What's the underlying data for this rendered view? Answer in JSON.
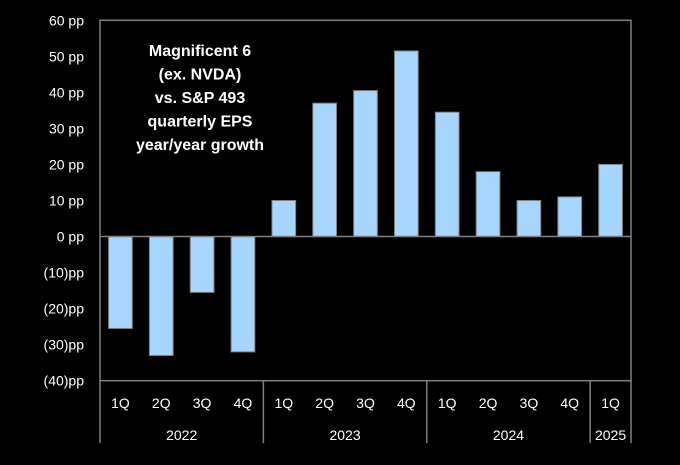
{
  "chart_data": {
    "type": "bar",
    "title_lines": [
      "Magnificent 6",
      "(ex. NVDA)",
      "vs. S&P 493",
      "quarterly EPS",
      "year/year growth"
    ],
    "xlabel": "",
    "ylabel": "",
    "ylim": [
      -40,
      60
    ],
    "yticks": [
      {
        "value": 60,
        "label": "60 pp"
      },
      {
        "value": 50,
        "label": "50 pp"
      },
      {
        "value": 40,
        "label": "40 pp"
      },
      {
        "value": 30,
        "label": "30 pp"
      },
      {
        "value": 20,
        "label": "20 pp"
      },
      {
        "value": 10,
        "label": "10 pp"
      },
      {
        "value": 0,
        "label": "0 pp"
      },
      {
        "value": -10,
        "label": "(10)pp"
      },
      {
        "value": -20,
        "label": "(20)pp"
      },
      {
        "value": -30,
        "label": "(30)pp"
      },
      {
        "value": -40,
        "label": "(40)pp"
      }
    ],
    "categories": [
      "1Q",
      "2Q",
      "3Q",
      "4Q",
      "1Q",
      "2Q",
      "3Q",
      "4Q",
      "1Q",
      "2Q",
      "3Q",
      "4Q",
      "1Q"
    ],
    "groups": [
      {
        "label": "2022",
        "count": 4
      },
      {
        "label": "2023",
        "count": 4
      },
      {
        "label": "2024",
        "count": 4
      },
      {
        "label": "2025",
        "count": 1
      }
    ],
    "values": [
      -25.5,
      -33,
      -15.5,
      -32,
      10,
      37,
      40.5,
      51.5,
      34.5,
      18,
      10,
      11,
      20
    ],
    "bar_color": "#a6d6ff",
    "grid": false,
    "legend": "none"
  }
}
